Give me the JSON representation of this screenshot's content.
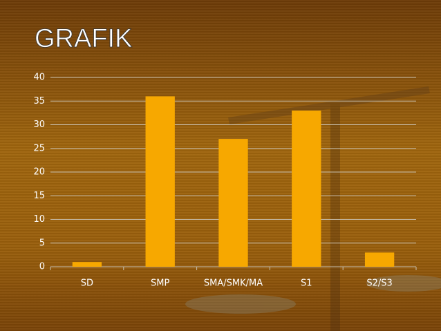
{
  "chart_data": {
    "type": "bar",
    "title": "GRAFIK",
    "categories": [
      "SD",
      "SMP",
      "SMA/SMK/MA",
      "S1",
      "S2/S3"
    ],
    "values": [
      1,
      36,
      27,
      33,
      3
    ],
    "color": "#f7a800",
    "ylim": [
      0,
      40
    ],
    "yticks": [
      0,
      5,
      10,
      15,
      20,
      25,
      30,
      35,
      40
    ],
    "grid": true
  }
}
